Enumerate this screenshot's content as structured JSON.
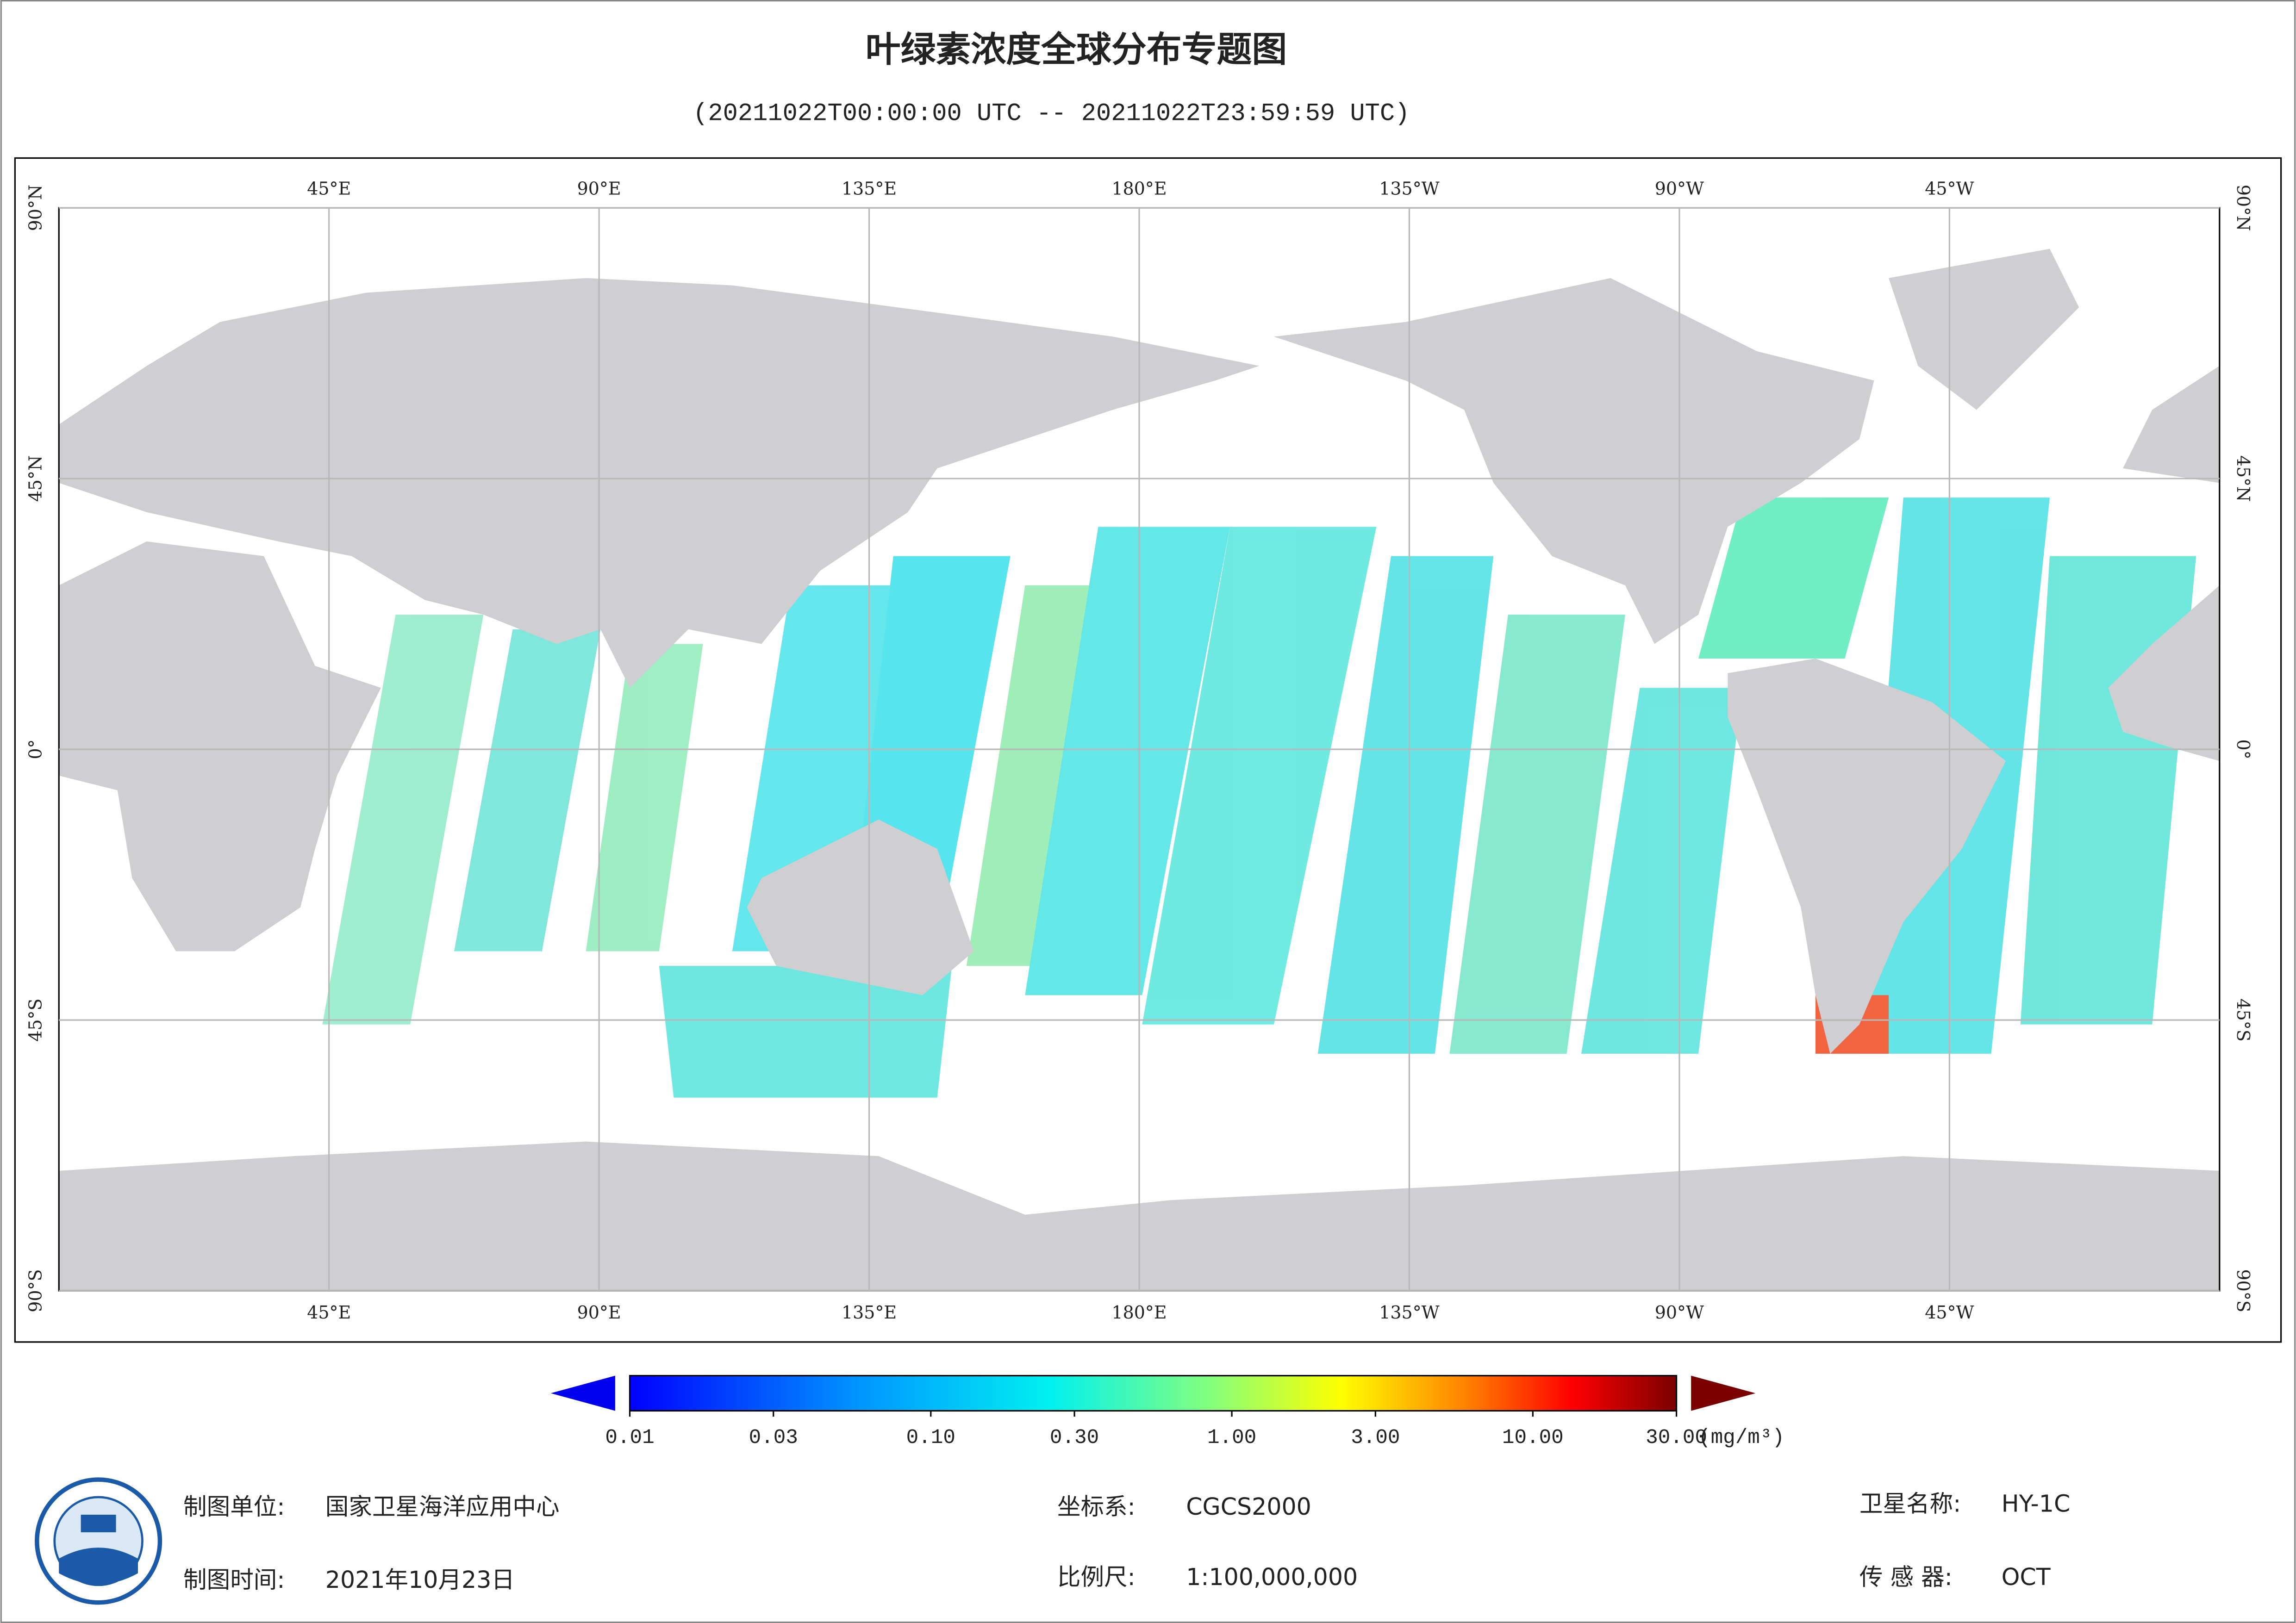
{
  "title": "叶绿素浓度全球分布专题图",
  "subtitle": "(20211022T00:00:00 UTC -- 20211022T23:59:59 UTC)",
  "map": {
    "lon_range": [
      0,
      360
    ],
    "lat_range": [
      -90,
      90
    ],
    "lon_ticks": [
      {
        "value": 45,
        "label": "45°E"
      },
      {
        "value": 90,
        "label": "90°E"
      },
      {
        "value": 135,
        "label": "135°E"
      },
      {
        "value": 180,
        "label": "180°E"
      },
      {
        "value": -135,
        "label": "135°W"
      },
      {
        "value": -90,
        "label": "90°W"
      },
      {
        "value": -45,
        "label": "45°W"
      }
    ],
    "lat_ticks": [
      {
        "value": 90,
        "label": "90°N"
      },
      {
        "value": 45,
        "label": "45°N"
      },
      {
        "value": 0,
        "label": "0°"
      },
      {
        "value": -45,
        "label": "45°S"
      },
      {
        "value": -90,
        "label": "90°S"
      }
    ]
  },
  "colorbar": {
    "log": true,
    "lim": [
      0.01,
      30
    ],
    "unit": "(mg/m³)",
    "ticks": [
      {
        "value": 0.01,
        "label": "0.01"
      },
      {
        "value": 0.03,
        "label": "0.03"
      },
      {
        "value": 0.1,
        "label": "0.10"
      },
      {
        "value": 0.3,
        "label": "0.30"
      },
      {
        "value": 1,
        "label": "1.00"
      },
      {
        "value": 3,
        "label": "3.00"
      },
      {
        "value": 10,
        "label": "10.00"
      },
      {
        "value": 30,
        "label": "30.00"
      }
    ]
  },
  "footer": {
    "unit_label": "制图单位:",
    "unit": "国家卫星海洋应用中心",
    "date_label": "制图时间:",
    "date": "2021年10月23日",
    "crs_label": "坐标系:",
    "crs": "CGCS2000",
    "scale_label": "比例尺:",
    "scale": "1:100,000,000",
    "satellite_label": "卫星名称:",
    "satellite": "HY-1C",
    "sensor_label": "传 感 器:",
    "sensor": "OCT"
  }
}
